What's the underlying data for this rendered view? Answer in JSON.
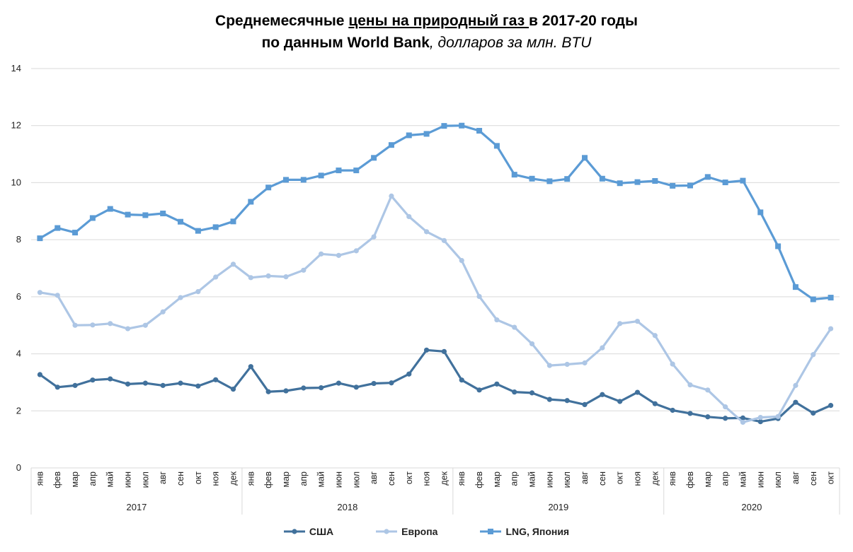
{
  "title": {
    "part1": "Среднемесячные ",
    "part2": "цены на природный газ ",
    "part3": "в 2017-20 годы",
    "part4": "по данным World Bank",
    "part5": ", долларов за млн. BTU"
  },
  "chart_data": {
    "type": "line",
    "ylim": [
      0,
      14
    ],
    "yticks": [
      0,
      2,
      4,
      6,
      8,
      10,
      12,
      14
    ],
    "grid": true,
    "legend_position": "bottom",
    "months": [
      "янв",
      "фев",
      "мар",
      "апр",
      "май",
      "июн",
      "июл",
      "авг",
      "сен",
      "окт",
      "ноя",
      "дек"
    ],
    "years": [
      "2017",
      "2018",
      "2019",
      "2020"
    ],
    "x": [
      "янв",
      "фев",
      "мар",
      "апр",
      "май",
      "июн",
      "июл",
      "авг",
      "сен",
      "окт",
      "ноя",
      "дек",
      "янв",
      "фев",
      "мар",
      "апр",
      "май",
      "июн",
      "июл",
      "авг",
      "сен",
      "окт",
      "ноя",
      "дек",
      "янв",
      "фев",
      "мар",
      "апр",
      "май",
      "июн",
      "июл",
      "авг",
      "сен",
      "окт",
      "ноя",
      "дек",
      "янв",
      "фев",
      "мар",
      "апр",
      "май",
      "июн",
      "июл",
      "авг",
      "сен",
      "окт"
    ],
    "series": [
      {
        "name": "США",
        "color": "#41719c",
        "marker": "circle",
        "values": [
          3.27,
          2.83,
          2.89,
          3.08,
          3.12,
          2.94,
          2.97,
          2.89,
          2.97,
          2.87,
          3.09,
          2.76,
          3.55,
          2.67,
          2.7,
          2.8,
          2.81,
          2.97,
          2.83,
          2.96,
          2.98,
          3.29,
          4.13,
          4.08,
          3.08,
          2.73,
          2.94,
          2.66,
          2.63,
          2.4,
          2.36,
          2.22,
          2.57,
          2.33,
          2.65,
          2.25,
          2.02,
          1.91,
          1.79,
          1.74,
          1.75,
          1.62,
          1.73,
          2.3,
          1.92,
          2.19
        ]
      },
      {
        "name": "Европа",
        "color": "#adc6e5",
        "marker": "circle",
        "values": [
          6.15,
          6.05,
          5.0,
          5.01,
          5.06,
          4.88,
          5.0,
          5.47,
          5.97,
          6.18,
          6.69,
          7.14,
          6.67,
          6.73,
          6.7,
          6.93,
          7.5,
          7.45,
          7.61,
          8.1,
          9.53,
          8.81,
          8.28,
          7.97,
          7.27,
          6.01,
          5.19,
          4.93,
          4.35,
          3.59,
          3.63,
          3.68,
          4.21,
          5.06,
          5.14,
          4.64,
          3.64,
          2.91,
          2.73,
          2.14,
          1.6,
          1.77,
          1.8,
          2.89,
          3.97,
          4.88
        ]
      },
      {
        "name": "LNG, Япония",
        "color": "#5b9bd5",
        "marker": "square",
        "values": [
          8.05,
          8.41,
          8.25,
          8.76,
          9.08,
          8.88,
          8.86,
          8.92,
          8.63,
          8.31,
          8.44,
          8.64,
          9.33,
          9.83,
          10.1,
          10.1,
          10.25,
          10.43,
          10.43,
          10.87,
          11.32,
          11.66,
          11.71,
          11.99,
          12.0,
          11.82,
          11.29,
          10.28,
          10.14,
          10.05,
          10.13,
          10.87,
          10.14,
          9.98,
          10.02,
          10.06,
          9.89,
          9.9,
          10.2,
          10.01,
          10.07,
          8.96,
          7.77,
          6.34,
          5.91,
          5.97
        ]
      }
    ]
  }
}
